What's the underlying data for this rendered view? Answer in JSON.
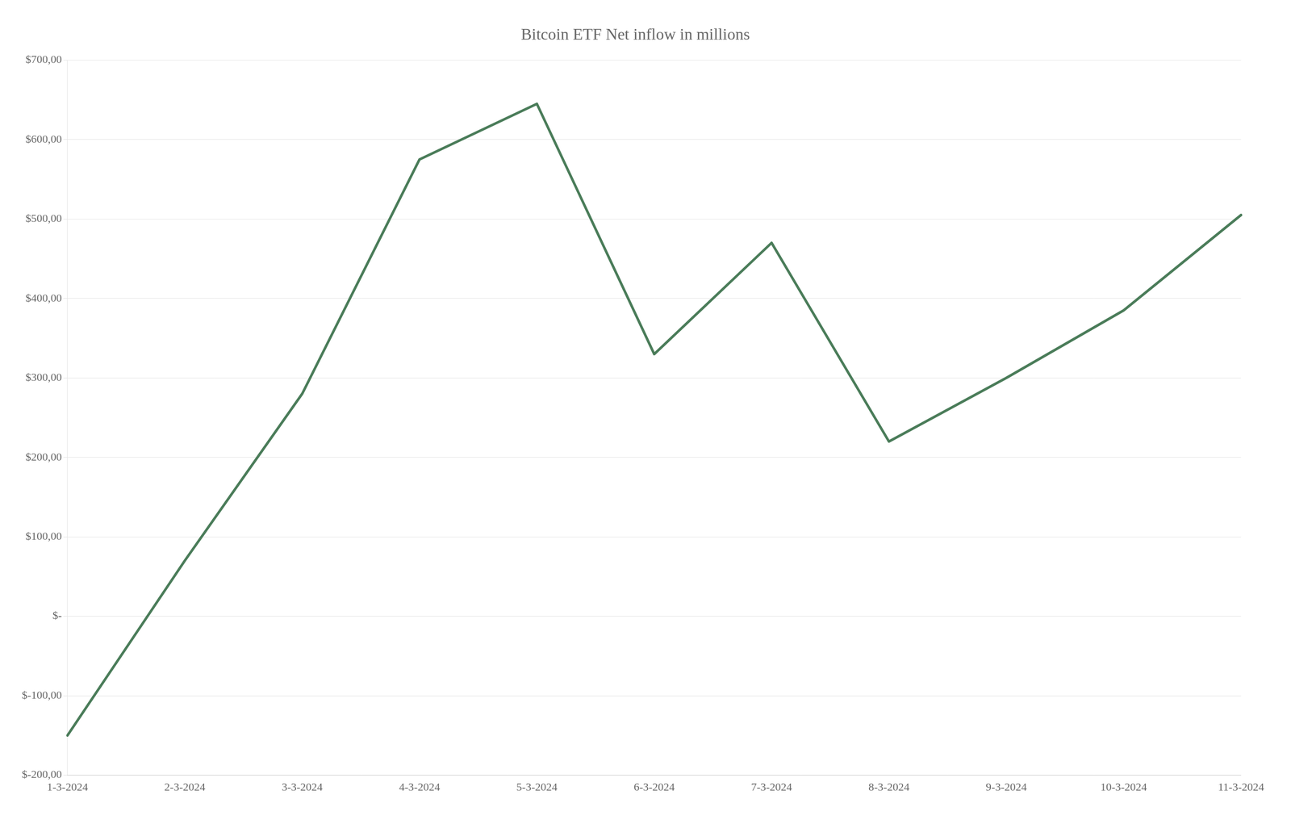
{
  "chart_data": {
    "type": "line",
    "title": "Bitcoin ETF Net inflow in millions",
    "categories": [
      "1-3-2024",
      "2-3-2024",
      "3-3-2024",
      "4-3-2024",
      "5-3-2024",
      "6-3-2024",
      "7-3-2024",
      "8-3-2024",
      "9-3-2024",
      "10-3-2024",
      "11-3-2024"
    ],
    "values": [
      -150,
      70,
      280,
      575,
      645,
      330,
      470,
      220,
      300,
      385,
      505
    ],
    "color": "#4a7c59",
    "ylim": [
      -200,
      700
    ],
    "yticks": [
      {
        "value": -200,
        "label": "$-200,00"
      },
      {
        "value": -100,
        "label": "$-100,00"
      },
      {
        "value": 0,
        "label": "$-"
      },
      {
        "value": 100,
        "label": "$100,00"
      },
      {
        "value": 200,
        "label": "$200,00"
      },
      {
        "value": 300,
        "label": "$300,00"
      },
      {
        "value": 400,
        "label": "$400,00"
      },
      {
        "value": 500,
        "label": "$500,00"
      },
      {
        "value": 600,
        "label": "$600,00"
      },
      {
        "value": 700,
        "label": "$700,00"
      }
    ],
    "grid": "y"
  }
}
